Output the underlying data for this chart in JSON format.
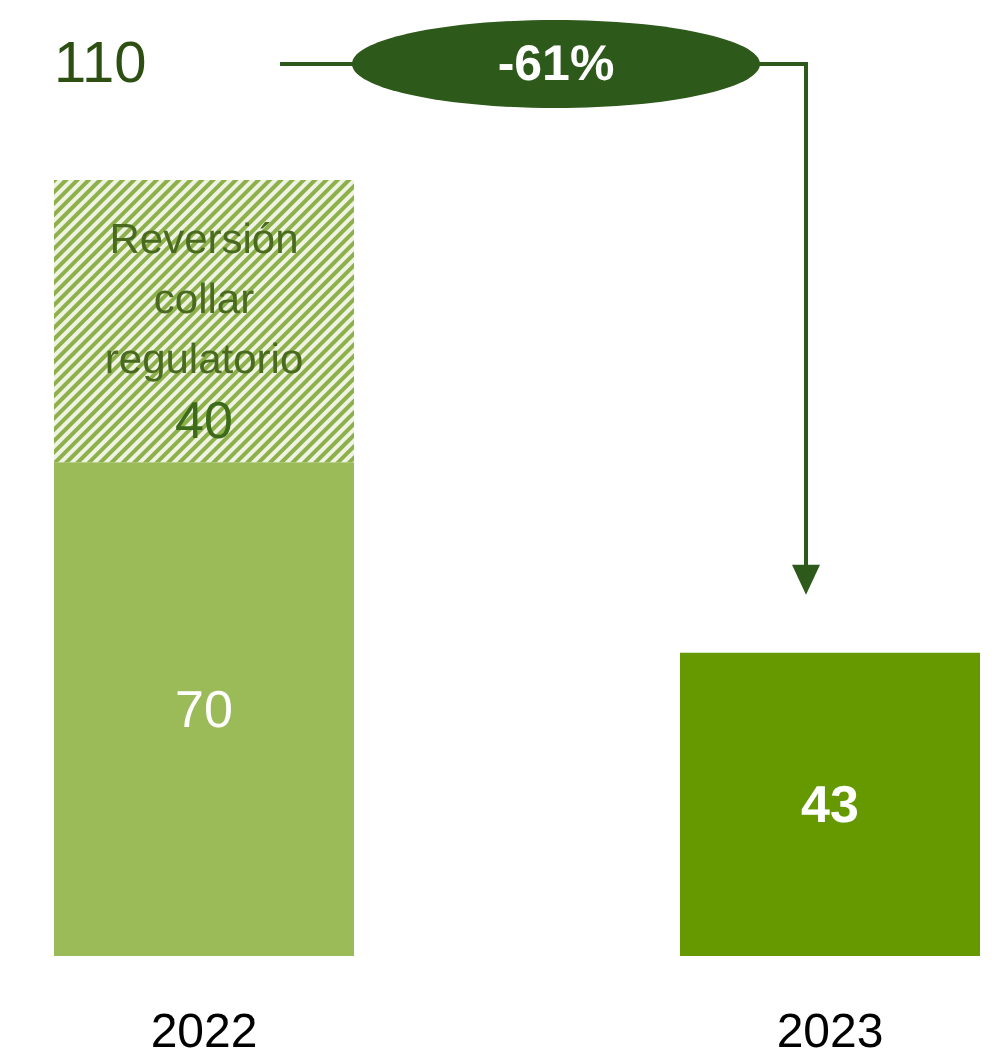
{
  "chart_data": {
    "type": "bar",
    "stacked": true,
    "data_labels": true,
    "legend": false,
    "categories": [
      "2022",
      "2023"
    ],
    "series": [
      {
        "colors": [
          "#9bbb59",
          "#669900"
        ],
        "values": [
          70,
          43
        ]
      },
      {
        "name": "Reversión collar regulatorio",
        "color": "#8db04a",
        "values": [
          40,
          null
        ]
      }
    ],
    "totals": [
      "110",
      null
    ],
    "annotations": [
      "-61%"
    ]
  }
}
